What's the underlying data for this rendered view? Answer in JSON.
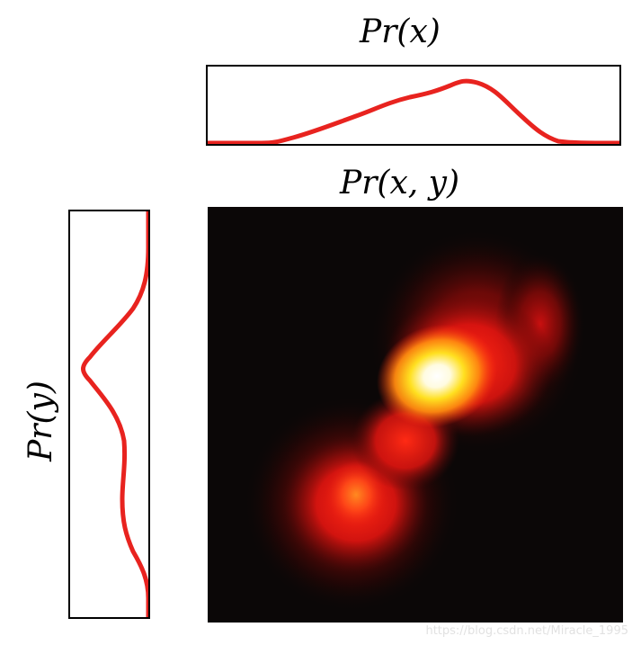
{
  "titles": {
    "px": "Pr(x)",
    "pxy": "Pr(x, y)",
    "py": "Pr(y)"
  },
  "colors": {
    "curve": "#e8231f",
    "heatmap_background": "#0b0707",
    "hot_core": "#ffffff"
  },
  "watermark": "https://blog.csdn.net/Miracle_1995"
}
